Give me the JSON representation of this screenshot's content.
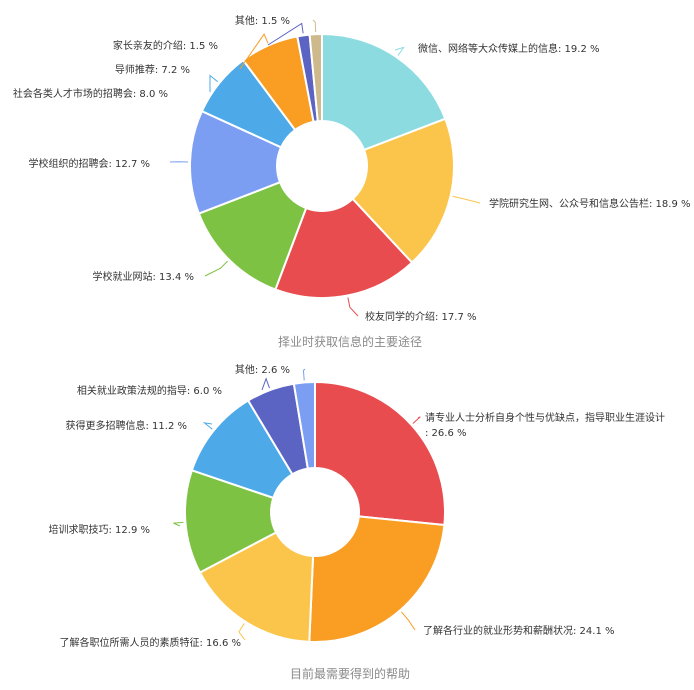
{
  "chart_data": [
    {
      "type": "pie",
      "title": "择业时获取信息的主要途径",
      "slices": [
        {
          "label": "微信、网络等大众传媒上的信息",
          "value": 19.2,
          "color": "#8BDBE0"
        },
        {
          "label": "学院研究生网、公众号和信息公告栏",
          "value": 18.9,
          "color": "#FBC54C"
        },
        {
          "label": "校友同学的介绍",
          "value": 17.7,
          "color": "#E84C4F"
        },
        {
          "label": "学校就业网站",
          "value": 13.4,
          "color": "#7DC243"
        },
        {
          "label": "学校组织的招聘会",
          "value": 12.7,
          "color": "#7C9EF2"
        },
        {
          "label": "社会各类人才市场的招聘会",
          "value": 8.0,
          "color": "#4DA9E8"
        },
        {
          "label": "导师推荐",
          "value": 7.2,
          "color": "#F99D23"
        },
        {
          "label": "家长亲友的介绍",
          "value": 1.5,
          "color": "#5B64C3"
        },
        {
          "label": "其他",
          "value": 1.5,
          "color": "#CDB98C"
        }
      ]
    },
    {
      "type": "pie",
      "title": "目前最需要得到的帮助",
      "slices": [
        {
          "label": "请专业人士分析自身个性与优缺点，指导职业生涯设计",
          "value": 26.6,
          "color": "#E84C4F"
        },
        {
          "label": "了解各行业的就业形势和薪酬状况",
          "value": 24.1,
          "color": "#F99D23"
        },
        {
          "label": "了解各职位所需人员的素质特征",
          "value": 16.6,
          "color": "#FBC54C"
        },
        {
          "label": "培训求职技巧",
          "value": 12.9,
          "color": "#7DC243"
        },
        {
          "label": "获得更多招聘信息",
          "value": 11.2,
          "color": "#4DA9E8"
        },
        {
          "label": "相关就业政策法规的指导",
          "value": 6.0,
          "color": "#5B64C3"
        },
        {
          "label": "其他",
          "value": 2.6,
          "color": "#7C9EF2"
        }
      ]
    }
  ]
}
